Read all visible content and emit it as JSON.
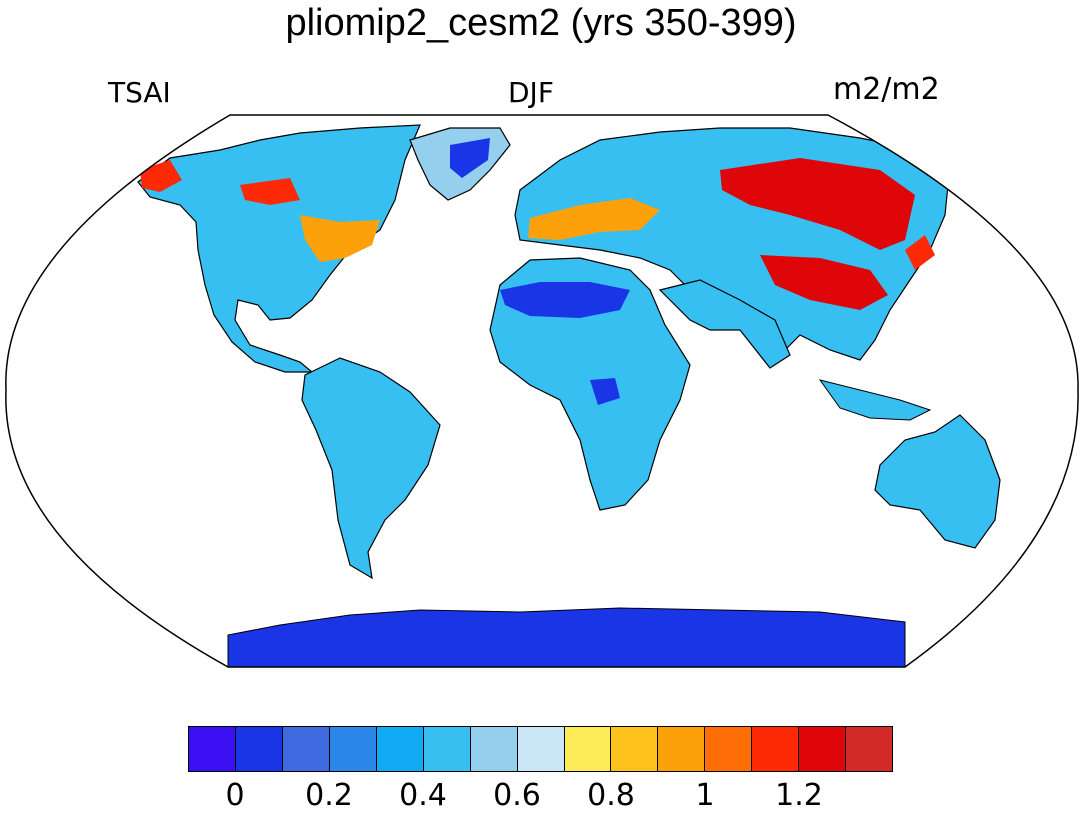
{
  "title": "pliomip2_cesm2 (yrs 350-399)",
  "labels": {
    "left": "TSAI",
    "center": "DJF",
    "right": "m2/m2"
  },
  "colorbar": {
    "colors": [
      "#3b10f2",
      "#1a35e6",
      "#3f6ae0",
      "#2b88ea",
      "#10aaf5",
      "#36bff0",
      "#94d0ee",
      "#cbe7f7",
      "#fdeb58",
      "#fdc21b",
      "#fda10a",
      "#fe6d06",
      "#fe2a06",
      "#de0608",
      "#d22a29"
    ],
    "tick_labels": [
      "0",
      "0.2",
      "0.4",
      "0.6",
      "0.8",
      "1",
      "1.2"
    ]
  }
}
